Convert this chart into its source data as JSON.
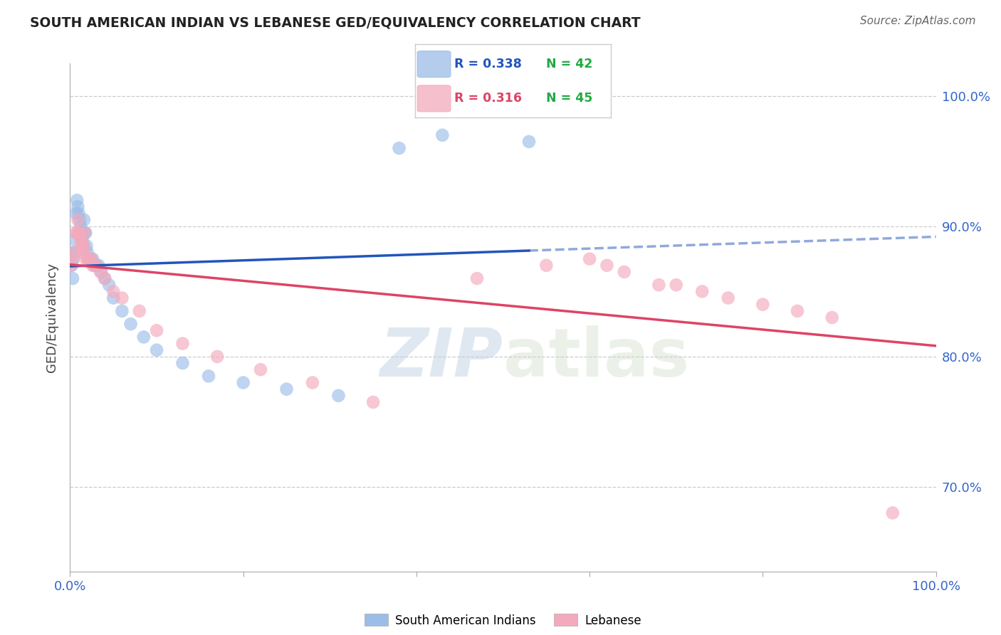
{
  "title": "SOUTH AMERICAN INDIAN VS LEBANESE GED/EQUIVALENCY CORRELATION CHART",
  "source": "Source: ZipAtlas.com",
  "ylabel": "GED/Equivalency",
  "xlim": [
    0.0,
    1.0
  ],
  "ylim": [
    0.635,
    1.025
  ],
  "yticks": [
    0.7,
    0.8,
    0.9,
    1.0
  ],
  "ytick_labels": [
    "70.0%",
    "80.0%",
    "90.0%",
    "100.0%"
  ],
  "xtick_vals": [
    0.0,
    0.2,
    0.4,
    0.6,
    0.8,
    1.0
  ],
  "xtick_labels": [
    "0.0%",
    "",
    "",
    "",
    "",
    "100.0%"
  ],
  "blue_fill": "#9BBDE8",
  "pink_fill": "#F4AABC",
  "blue_line_color": "#2255BB",
  "pink_line_color": "#DD4466",
  "legend_R_blue": "R = 0.338",
  "legend_N_blue": "N = 42",
  "legend_R_pink": "R = 0.316",
  "legend_N_pink": "N = 45",
  "legend_label_blue": "South American Indians",
  "legend_label_pink": "Lebanese",
  "N_color": "#22AA44",
  "axis_label_color": "#3366CC",
  "title_color": "#222222",
  "grid_color": "#CCCCCC",
  "blue_x": [
    0.001,
    0.002,
    0.003,
    0.004,
    0.005,
    0.006,
    0.007,
    0.008,
    0.009,
    0.01,
    0.011,
    0.012,
    0.013,
    0.014,
    0.015,
    0.016,
    0.017,
    0.018,
    0.019,
    0.02,
    0.022,
    0.024,
    0.026,
    0.028,
    0.03,
    0.033,
    0.036,
    0.04,
    0.045,
    0.05,
    0.06,
    0.07,
    0.085,
    0.1,
    0.13,
    0.16,
    0.2,
    0.25,
    0.31,
    0.38,
    0.43,
    0.53
  ],
  "blue_y": [
    0.88,
    0.87,
    0.86,
    0.875,
    0.89,
    0.88,
    0.91,
    0.92,
    0.915,
    0.91,
    0.905,
    0.9,
    0.895,
    0.89,
    0.885,
    0.905,
    0.895,
    0.895,
    0.885,
    0.88,
    0.875,
    0.875,
    0.875,
    0.87,
    0.87,
    0.87,
    0.865,
    0.86,
    0.855,
    0.845,
    0.835,
    0.825,
    0.815,
    0.805,
    0.795,
    0.785,
    0.78,
    0.775,
    0.77,
    0.96,
    0.97,
    0.965
  ],
  "pink_x": [
    0.001,
    0.003,
    0.005,
    0.007,
    0.008,
    0.009,
    0.01,
    0.011,
    0.012,
    0.013,
    0.014,
    0.015,
    0.016,
    0.017,
    0.018,
    0.02,
    0.022,
    0.024,
    0.026,
    0.028,
    0.03,
    0.035,
    0.04,
    0.05,
    0.06,
    0.08,
    0.1,
    0.13,
    0.17,
    0.22,
    0.28,
    0.35,
    0.47,
    0.55,
    0.6,
    0.62,
    0.64,
    0.68,
    0.7,
    0.73,
    0.76,
    0.8,
    0.84,
    0.88,
    0.95
  ],
  "pink_y": [
    0.87,
    0.875,
    0.88,
    0.895,
    0.895,
    0.905,
    0.895,
    0.895,
    0.89,
    0.885,
    0.885,
    0.88,
    0.885,
    0.895,
    0.875,
    0.875,
    0.875,
    0.875,
    0.87,
    0.87,
    0.87,
    0.865,
    0.86,
    0.85,
    0.845,
    0.835,
    0.82,
    0.81,
    0.8,
    0.79,
    0.78,
    0.765,
    0.86,
    0.87,
    0.875,
    0.87,
    0.865,
    0.855,
    0.855,
    0.85,
    0.845,
    0.84,
    0.835,
    0.83,
    0.68
  ]
}
